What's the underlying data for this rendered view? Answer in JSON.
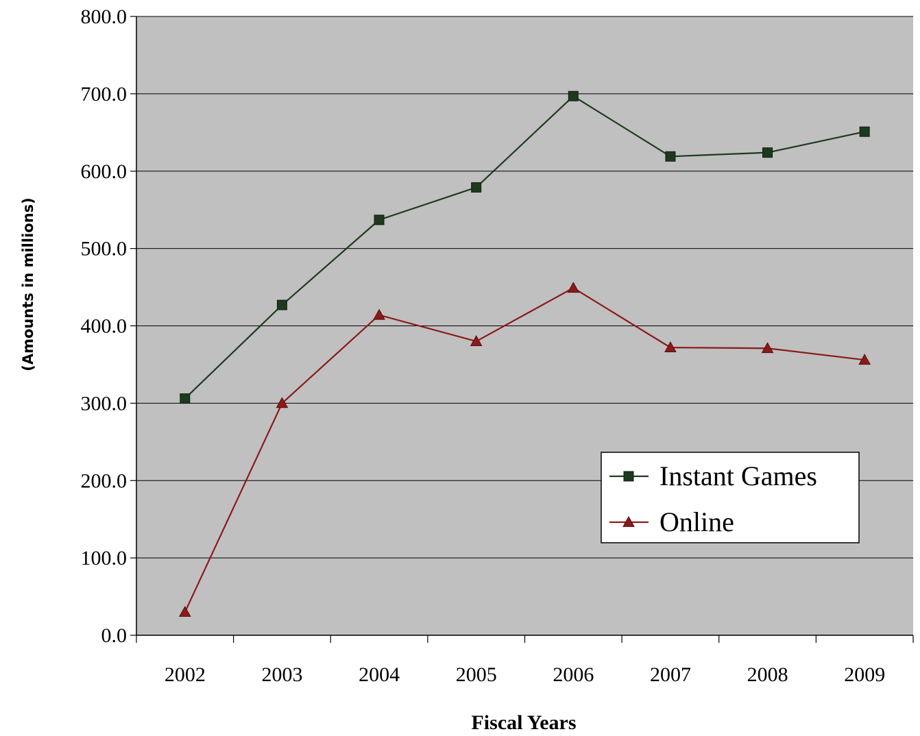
{
  "chart_data": {
    "type": "line",
    "title": "",
    "xlabel": "Fiscal Years",
    "ylabel": "(Amounts in millions)",
    "categories": [
      "2002",
      "2003",
      "2004",
      "2005",
      "2006",
      "2007",
      "2008",
      "2009"
    ],
    "ylim": [
      0,
      800
    ],
    "yticks": [
      "0.0",
      "100.0",
      "200.0",
      "300.0",
      "400.0",
      "500.0",
      "600.0",
      "700.0",
      "800.0"
    ],
    "grid": true,
    "legend_position": "right",
    "plot_background": "#c0c0c0",
    "series": [
      {
        "name": "Instant Games",
        "color": "#1e3a1e",
        "marker": "square",
        "values": [
          306,
          427,
          537,
          579,
          697,
          619,
          624,
          651
        ]
      },
      {
        "name": "Online",
        "color": "#8b1a1a",
        "marker": "triangle",
        "values": [
          30,
          300,
          414,
          380,
          449,
          372,
          371,
          356
        ]
      }
    ]
  }
}
